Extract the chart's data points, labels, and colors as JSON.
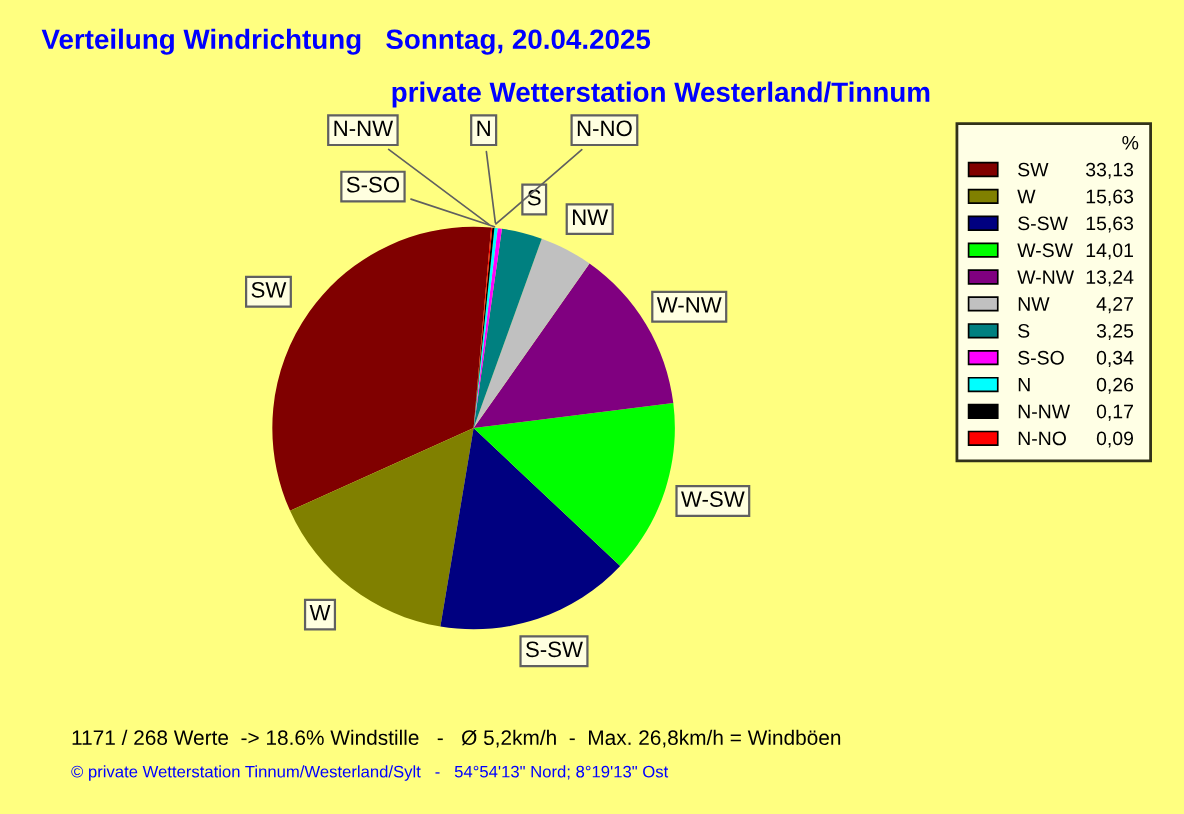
{
  "chart_data": {
    "type": "pie",
    "title": "Verteilung Windrichtung   Sonntag, 20.04.2025",
    "subtitle": "private Wetterstation Westerland/Tinnum",
    "legend_title": "%",
    "legend": "right",
    "categories": [
      "SW",
      "W",
      "S-SW",
      "W-SW",
      "W-NW",
      "NW",
      "S",
      "S-SO",
      "N",
      "N-NW",
      "N-NO"
    ],
    "values": [
      33.13,
      15.63,
      15.63,
      14.01,
      13.24,
      4.27,
      3.25,
      0.34,
      0.26,
      0.17,
      0.09
    ],
    "value_labels": [
      "33,13",
      "15,63",
      "15,63",
      "14,01",
      "13,24",
      "4,27",
      "3,25",
      "0,34",
      "0,26",
      "0,17",
      "0,09"
    ],
    "colors": [
      "#800000",
      "#808000",
      "#000080",
      "#00ff00",
      "#800080",
      "#c0c0c0",
      "#008080",
      "#ff00ff",
      "#00ffff",
      "#000000",
      "#ff0000"
    ],
    "annotations": [
      "1171 / 268 Werte  -> 18.6% Windstille   -   Ø 5,2km/h  -  Max. 26,8km/h = Windböen",
      "© private Wetterstation Tinnum/Westerland/Sylt   -   54°54'13\" Nord; 8°19'13\" Ost"
    ]
  }
}
